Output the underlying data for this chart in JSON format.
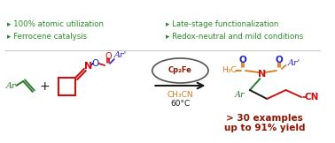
{
  "bg_color": "#ffffff",
  "green": "#2a7a2a",
  "red": "#cc1111",
  "blue": "#2222cc",
  "orange": "#d4781a",
  "black": "#1a1a1a",
  "dark_red": "#8b1500",
  "bullet_green": "#2a8a2a",
  "catalyst": "Cp₂Fe",
  "arrow_reagent": "CH₃CN",
  "arrow_temp": "60°C",
  "result1": "> 30 examples",
  "result2": "up to 91% yield",
  "bullets_left": [
    "▸ Ferrocene catalysis",
    "▸ 100% atomic utilization"
  ],
  "bullets_right": [
    "▸ Redox-neutral and mild conditions",
    "▸ Late-stage functionalization"
  ]
}
